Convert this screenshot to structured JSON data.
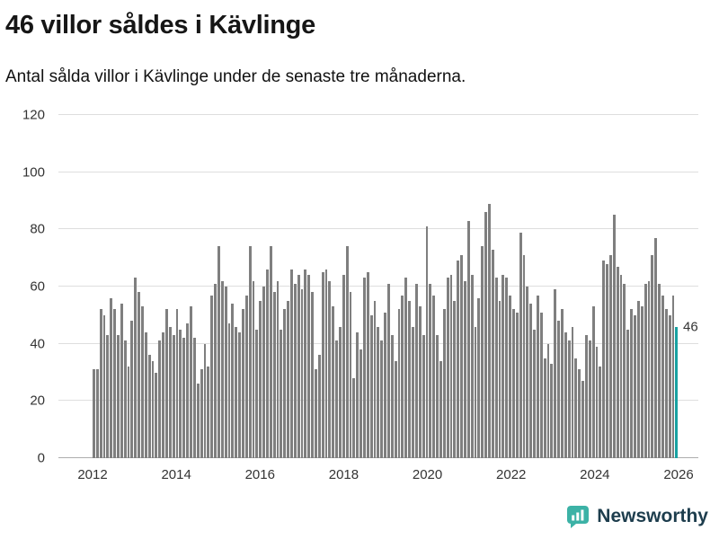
{
  "chart_data": {
    "type": "bar",
    "title": "46 villor såldes i Kävlinge",
    "subtitle": "Antal sålda villor i Kävlinge under de senaste tre månaderna.",
    "frequency": "monthly",
    "x_start_year": 2012,
    "x_start_month": 1,
    "values": [
      31,
      31,
      52,
      50,
      43,
      56,
      52,
      43,
      54,
      41,
      32,
      48,
      63,
      58,
      53,
      44,
      36,
      34,
      30,
      41,
      44,
      52,
      46,
      43,
      52,
      45,
      42,
      47,
      53,
      42,
      26,
      31,
      40,
      32,
      57,
      61,
      74,
      62,
      60,
      47,
      54,
      46,
      44,
      52,
      57,
      74,
      62,
      45,
      55,
      60,
      66,
      74,
      58,
      62,
      45,
      52,
      55,
      66,
      61,
      64,
      59,
      66,
      64,
      58,
      31,
      36,
      65,
      66,
      62,
      53,
      41,
      46,
      64,
      74,
      58,
      28,
      44,
      38,
      63,
      65,
      50,
      55,
      46,
      41,
      51,
      61,
      43,
      34,
      52,
      57,
      63,
      55,
      46,
      61,
      53,
      43,
      81,
      61,
      57,
      43,
      34,
      52,
      63,
      64,
      55,
      69,
      71,
      62,
      83,
      64,
      46,
      56,
      74,
      86,
      89,
      73,
      63,
      55,
      64,
      63,
      57,
      52,
      51,
      79,
      71,
      60,
      54,
      45,
      57,
      51,
      35,
      40,
      33,
      59,
      48,
      52,
      44,
      41,
      46,
      35,
      31,
      27,
      43,
      41,
      53,
      39,
      32,
      69,
      68,
      71,
      85,
      67,
      64,
      61,
      45,
      52,
      50,
      55,
      53,
      61,
      62,
      71,
      77,
      61,
      57,
      52,
      50,
      57,
      46
    ],
    "ylim": [
      0,
      120
    ],
    "yticks": [
      0,
      20,
      40,
      60,
      80,
      100,
      120
    ],
    "xticks": [
      2012,
      2014,
      2016,
      2018,
      2020,
      2022,
      2024,
      2026
    ],
    "grid": true,
    "legend": "none",
    "bar_color": "#7f7f7f",
    "highlight_last": true,
    "highlight_color": "#18a2a2",
    "annotation": "46"
  },
  "footer": {
    "brand": "Newsworthy",
    "brand_color": "#3cb2a6"
  }
}
